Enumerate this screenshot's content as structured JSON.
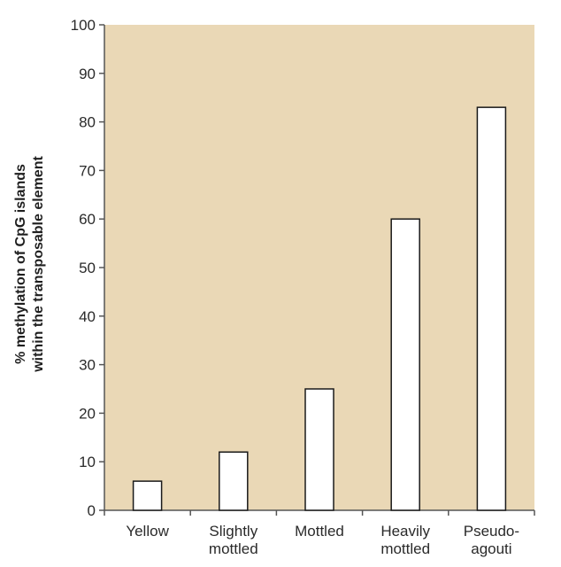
{
  "chart_data": {
    "type": "bar",
    "title": "",
    "xlabel": "",
    "ylabel_lines": [
      "% methylation of CpG islands",
      "within the transposable element"
    ],
    "categories": [
      [
        "Yellow"
      ],
      [
        "Slightly",
        "mottled"
      ],
      [
        "Mottled"
      ],
      [
        "Heavily",
        "mottled"
      ],
      [
        "Pseudo-",
        "agouti"
      ]
    ],
    "values": [
      6,
      12,
      25,
      60,
      83
    ],
    "ylim": [
      0,
      100
    ],
    "yticks": [
      "0",
      "10",
      "20",
      "30",
      "40",
      "50",
      "60",
      "70",
      "80",
      "90",
      "100"
    ],
    "grid": false,
    "colors": {
      "plot_background": "#ead8b6",
      "bar_fill": "#ffffff",
      "bar_stroke": "#1a1a1a",
      "axis": "#555555",
      "text": "#2a2a2a",
      "label_text": "#1f1f1f"
    }
  }
}
